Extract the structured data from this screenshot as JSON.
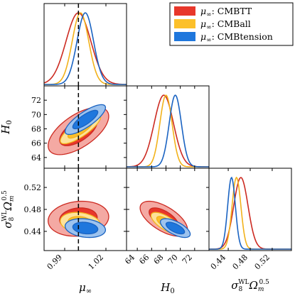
{
  "chart_data": {
    "type": "corner",
    "parameters": [
      {
        "key": "mu",
        "label": "μ∞",
        "range": [
          0.975,
          1.035
        ],
        "ticks": [
          "0.99",
          "1.02"
        ],
        "tick_values": [
          0.99,
          1.02
        ]
      },
      {
        "key": "H0",
        "label": "H0",
        "range": [
          62.5,
          74.0
        ],
        "ticks": [
          "64",
          "66",
          "68",
          "70",
          "72"
        ],
        "tick_values": [
          64,
          66,
          68,
          70,
          72
        ]
      },
      {
        "key": "S8",
        "label": "σ8WLΩm0.5",
        "range": [
          0.405,
          0.555
        ],
        "ticks": [
          "0.44",
          "0.48",
          "0.52"
        ],
        "tick_values": [
          0.44,
          0.48,
          0.52
        ]
      }
    ],
    "reference_line": {
      "parameter": "mu",
      "value": 1.0,
      "style": "dashed"
    },
    "series": [
      {
        "name": "μ∞: CMBTT",
        "fill_outer": "#f4a9a3",
        "fill_inner": "#e8372b",
        "line": "#cc2a21",
        "mean": {
          "mu": 1.0,
          "H0": 67.7,
          "S8": 0.463
        },
        "sigma": {
          "mu": 0.009,
          "H0": 1.35,
          "S8": 0.013
        },
        "corr": {
          "mu_H0": 0.62,
          "mu_S8": 0.12,
          "H0_S8": -0.62
        }
      },
      {
        "name": "μ∞: CMBall",
        "fill_outer": "#fde29a",
        "fill_inner": "#fcc02a",
        "line": "#f2b21b",
        "mean": {
          "mu": 1.0015,
          "H0": 68.0,
          "S8": 0.455
        },
        "sigma": {
          "mu": 0.006,
          "H0": 0.85,
          "S8": 0.008
        },
        "corr": {
          "mu_H0": 0.8,
          "mu_S8": -0.2,
          "H0_S8": -0.7
        }
      },
      {
        "name": "μ∞: CMBtension",
        "fill_outer": "#9dc3ee",
        "fill_inner": "#1f77dd",
        "line": "#1a63c2",
        "mean": {
          "mu": 1.005,
          "H0": 69.3,
          "S8": 0.446
        },
        "sigma": {
          "mu": 0.006,
          "H0": 0.85,
          "S8": 0.007
        },
        "corr": {
          "mu_H0": 0.8,
          "mu_S8": -0.2,
          "H0_S8": -0.65
        }
      }
    ],
    "legend": {
      "position": "top-right"
    }
  }
}
